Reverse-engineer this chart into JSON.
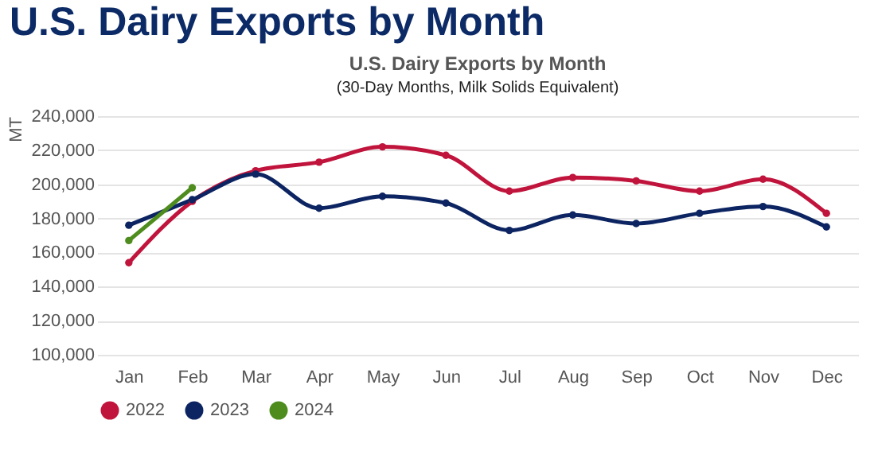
{
  "chart_data": {
    "type": "line",
    "title": "U.S. Dairy Exports by Month",
    "subtitle": "U.S. Dairy Exports by Month",
    "annotations": [
      "(30-Day Months, Milk Solids Equivalent)"
    ],
    "ylabel": "MT",
    "categories": [
      "Jan",
      "Feb",
      "Mar",
      "Apr",
      "May",
      "Jun",
      "Jul",
      "Aug",
      "Sep",
      "Oct",
      "Nov",
      "Dec"
    ],
    "series": [
      {
        "name": "2022",
        "color": "#c0143c",
        "values": [
          154000,
          190000,
          208000,
          213000,
          222000,
          217000,
          196000,
          204000,
          202000,
          196000,
          203000,
          183000
        ]
      },
      {
        "name": "2023",
        "color": "#0c2461",
        "values": [
          176000,
          191000,
          206000,
          186000,
          193000,
          189000,
          173000,
          182000,
          177000,
          183000,
          187000,
          175000
        ]
      },
      {
        "name": "2024",
        "color": "#4e8c1e",
        "values": [
          167000,
          198000,
          null,
          null,
          null,
          null,
          null,
          null,
          null,
          null,
          null,
          null
        ]
      }
    ],
    "ylim": [
      100000,
      240000
    ],
    "yticks": [
      {
        "value": 100000,
        "label": "100,000"
      },
      {
        "value": 120000,
        "label": "120,000"
      },
      {
        "value": 140000,
        "label": "140,000"
      },
      {
        "value": 160000,
        "label": "160,000"
      },
      {
        "value": 180000,
        "label": "180,000"
      },
      {
        "value": 200000,
        "label": "200,000"
      },
      {
        "value": 220000,
        "label": "220,000"
      },
      {
        "value": 240000,
        "label": "240,000"
      }
    ],
    "grid": "y",
    "legend": "bottom",
    "marker": "circle",
    "line_style": "solid"
  }
}
